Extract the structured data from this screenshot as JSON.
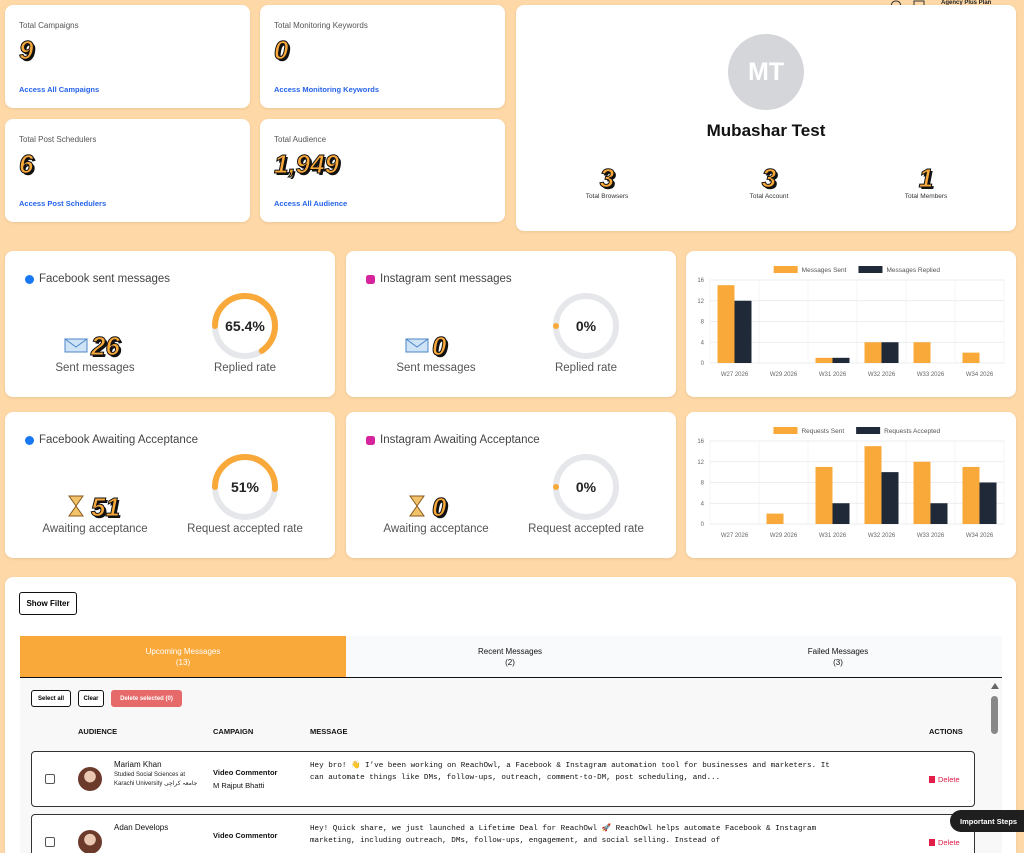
{
  "header": {
    "plan_small": "Agency Plus Plan",
    "plan_button": "Agency Plus Plan"
  },
  "stat_cards": [
    {
      "title": "Total Campaigns",
      "value": 9,
      "link": "Access All Campaigns"
    },
    {
      "title": "Total Monitoring Keywords",
      "value": 0,
      "link": "Access Monitoring Keywords"
    },
    {
      "title": "Total Post Schedulers",
      "value": 6,
      "link": "Access Post Schedulers"
    },
    {
      "title": "Total Audience",
      "value": {
        "value": 1949,
        "label": "1,949"
      },
      "link": "Access All Audience"
    }
  ],
  "profile": {
    "initials": "MT",
    "name": "Mubashar Test",
    "stats": [
      {
        "value": 3,
        "label": "Total Browsers"
      },
      {
        "value": 3,
        "label": "Total Account"
      },
      {
        "value": 1,
        "label": "Total Members"
      }
    ]
  },
  "metric_cards": [
    {
      "title": "Facebook sent messages",
      "network": "facebook",
      "count": 26,
      "count_label": "Sent messages",
      "rate": 65.4,
      "rate_value_label": "65.4%",
      "rate_label": "Replied rate"
    },
    {
      "title": "Instagram sent messages",
      "network": "instagram",
      "count": 0,
      "count_label": "Sent messages",
      "rate": 0,
      "rate_value_label": "0%",
      "rate_label": "Replied rate"
    },
    {
      "title": "Facebook Awaiting Acceptance",
      "network": "facebook",
      "count": 51,
      "count_label": "Awaiting acceptance",
      "rate": 51,
      "rate_value_label": "51%",
      "rate_label": "Request accepted rate"
    },
    {
      "title": "Instagram Awaiting Acceptance",
      "network": "instagram",
      "count": 0,
      "count_label": "Awaiting acceptance",
      "rate": 0,
      "rate_value_label": "0%",
      "rate_label": "Request accepted rate"
    }
  ],
  "chart_data": [
    {
      "type": "bar",
      "categories": [
        "W27 2026",
        "W29 2026",
        "W31 2026",
        "W32 2026",
        "W33 2026",
        "W34 2026"
      ],
      "series": [
        {
          "name": "Messages Sent",
          "color": "#f9a83a",
          "values": [
            15,
            0,
            1,
            4,
            4,
            2
          ]
        },
        {
          "name": "Messages Replied",
          "color": "#1f2937",
          "values": [
            12,
            0,
            1,
            4,
            0,
            0
          ]
        }
      ],
      "ylim": [
        0,
        16
      ],
      "yticks": [
        0,
        4,
        8,
        12,
        16
      ],
      "grid": true,
      "legend": "top"
    },
    {
      "type": "bar",
      "categories": [
        "W27 2026",
        "W29 2026",
        "W31 2026",
        "W32 2026",
        "W33 2026",
        "W34 2026"
      ],
      "series": [
        {
          "name": "Requests Sent",
          "color": "#f9a83a",
          "values": [
            0,
            2,
            11,
            15,
            12,
            11
          ]
        },
        {
          "name": "Requests Accepted",
          "color": "#1f2937",
          "values": [
            0,
            0,
            4,
            10,
            4,
            8
          ]
        }
      ],
      "ylim": [
        0,
        16
      ],
      "yticks": [
        0,
        4,
        8,
        12,
        16
      ],
      "grid": true,
      "legend": "top"
    }
  ],
  "messages": {
    "filter_button": "Show Filter",
    "tabs": [
      {
        "label": "Upcoming Messages",
        "count": "(13)"
      },
      {
        "label": "Recent Messages",
        "count": "(2)"
      },
      {
        "label": "Failed Messages",
        "count": "(3)"
      }
    ],
    "active_tab": 0,
    "buttons": [
      "Select all",
      "Clear",
      "Delete selected (0)"
    ],
    "columns": [
      "AUDIENCE",
      "CAMPAIGN",
      "MESSAGE",
      "ACTIONS"
    ],
    "rows": [
      {
        "name": "Mariam Khan",
        "headline": "Studied Social Sciences at Karachi University جامعہ کراچی",
        "campaign": "Video Commentor",
        "owner": "M Rajput Bhatti",
        "message": "Hey bro! 👋 I’ve been working on ReachOwl, a Facebook & Instagram automation tool for businesses and marketers. It can automate things like DMs, follow-ups, outreach, comment-to-DM, post scheduling, and...",
        "action": "Delete"
      },
      {
        "name": "Adan Develops",
        "campaign": "Video Commentor",
        "message": "Hey! Quick share, we just launched a Lifetime Deal for ReachOwl 🚀 ReachOwl helps automate Facebook & Instagram marketing, including outreach, DMs, follow-ups, engagement, and social selling. Instead of",
        "action": "Delete"
      }
    ]
  },
  "help_button": "Important Steps"
}
